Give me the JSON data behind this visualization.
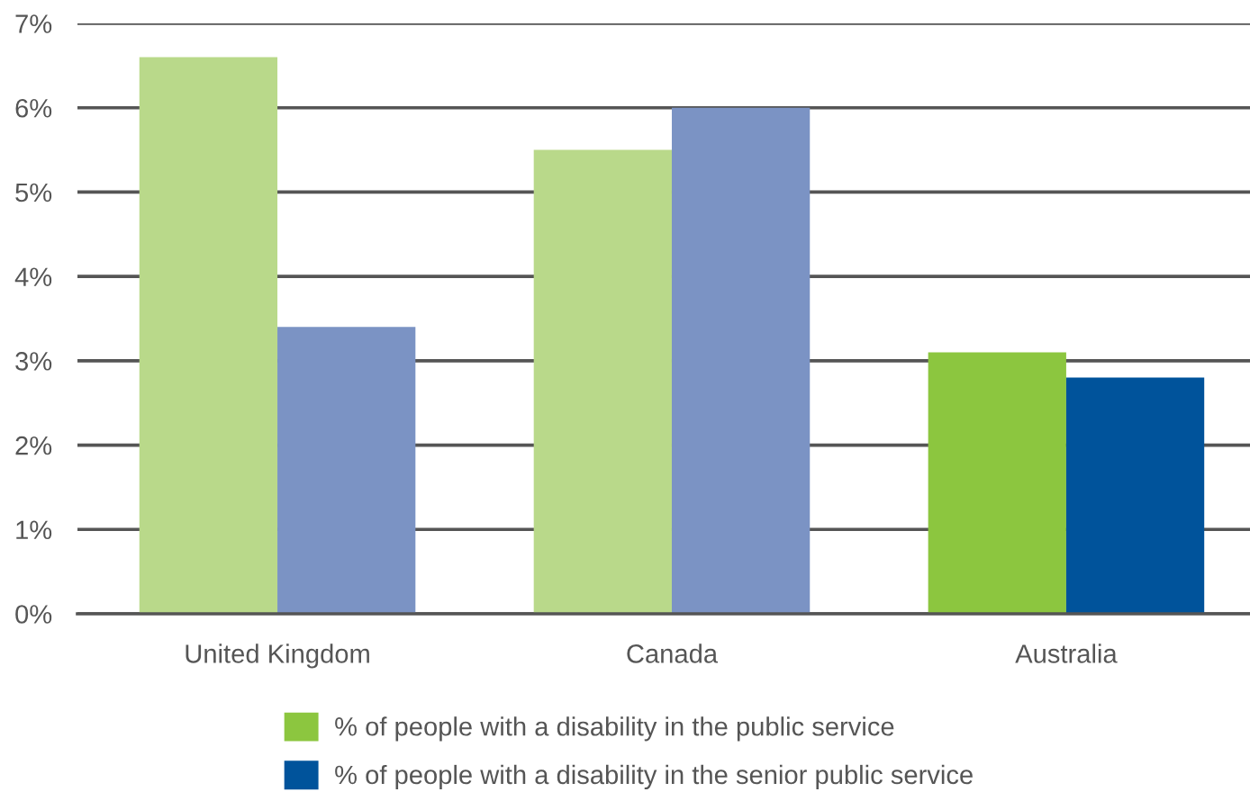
{
  "chart_data": {
    "type": "bar",
    "categories": [
      "United Kingdom",
      "Canada",
      "Australia"
    ],
    "series": [
      {
        "name": "% of people with a disability in the public service",
        "color": "#8cc63f",
        "colors": [
          "#b9d98a",
          "#b9d98a",
          "#8cc63f"
        ],
        "values": [
          6.6,
          5.5,
          3.1
        ]
      },
      {
        "name": "% of people with a disability in the senior public service",
        "color": "#00539b",
        "colors": [
          "#7b93c4",
          "#7b93c4",
          "#00539b"
        ],
        "values": [
          3.4,
          6.0,
          2.8
        ]
      }
    ],
    "ylim": [
      0,
      7
    ],
    "yticks": [
      {
        "value": 0,
        "label": "0%"
      },
      {
        "value": 1,
        "label": "1%"
      },
      {
        "value": 2,
        "label": "2%"
      },
      {
        "value": 3,
        "label": "3%"
      },
      {
        "value": 4,
        "label": "4%"
      },
      {
        "value": 5,
        "label": "5%"
      },
      {
        "value": 6,
        "label": "6%"
      },
      {
        "value": 7,
        "label": "7%"
      }
    ],
    "grid": "y",
    "legend": "bottom"
  }
}
